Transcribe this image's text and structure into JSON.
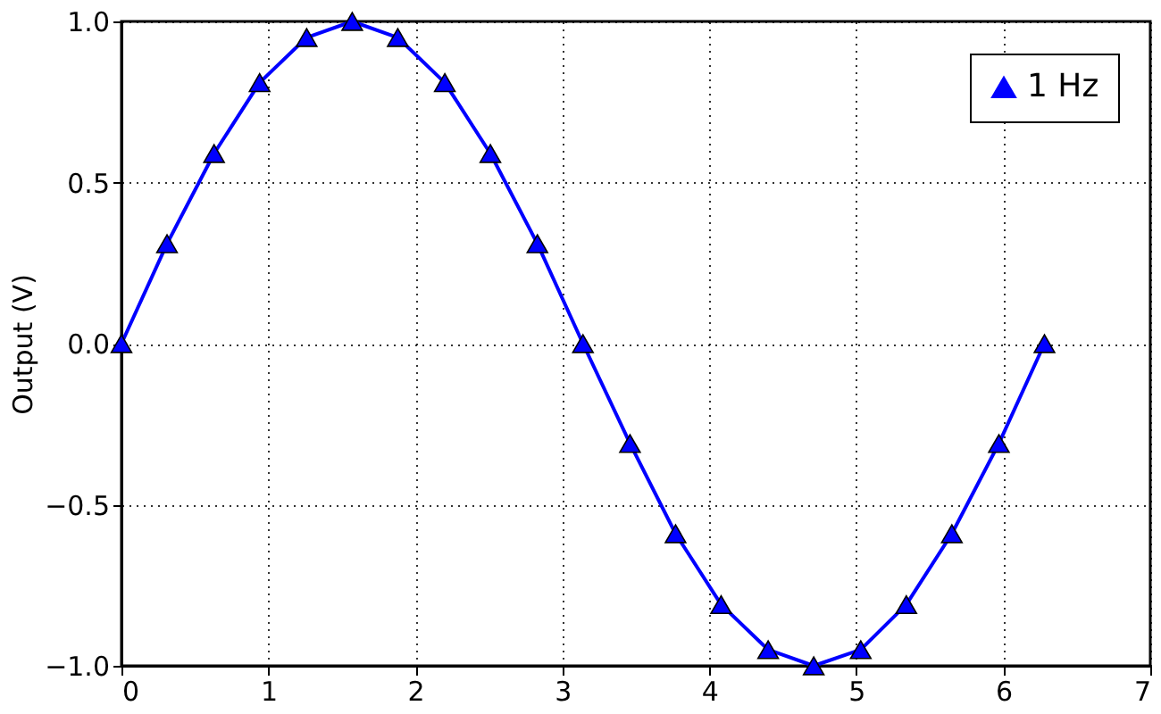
{
  "chart_data": {
    "type": "line",
    "ylabel": "Output (V)",
    "x": [
      0,
      0.31,
      0.63,
      0.94,
      1.26,
      1.57,
      1.88,
      2.2,
      2.51,
      2.83,
      3.14,
      3.46,
      3.77,
      4.08,
      4.4,
      4.71,
      5.03,
      5.34,
      5.65,
      5.97,
      6.28
    ],
    "series": [
      {
        "name": "1 Hz",
        "color": "#0000ff",
        "values": [
          0,
          0.31,
          0.59,
          0.81,
          0.95,
          1,
          0.95,
          0.81,
          0.59,
          0.31,
          0,
          -0.31,
          -0.59,
          -0.81,
          -0.95,
          -1,
          -0.95,
          -0.81,
          -0.59,
          -0.31,
          0
        ]
      }
    ],
    "xlim": [
      0,
      7
    ],
    "xticks": [
      0,
      1,
      2,
      3,
      4,
      5,
      6,
      7
    ],
    "ylim": [
      -1,
      1
    ],
    "yticks": [
      {
        "value": -1,
        "label": "−1.0"
      },
      {
        "value": -0.5,
        "label": "−0.5"
      },
      {
        "value": 0,
        "label": "0.0"
      },
      {
        "value": 0.5,
        "label": "0.5"
      },
      {
        "value": 1,
        "label": "1.0"
      }
    ],
    "grid": true,
    "legend": "top right",
    "marker": "triangle",
    "line_style": "solid"
  }
}
